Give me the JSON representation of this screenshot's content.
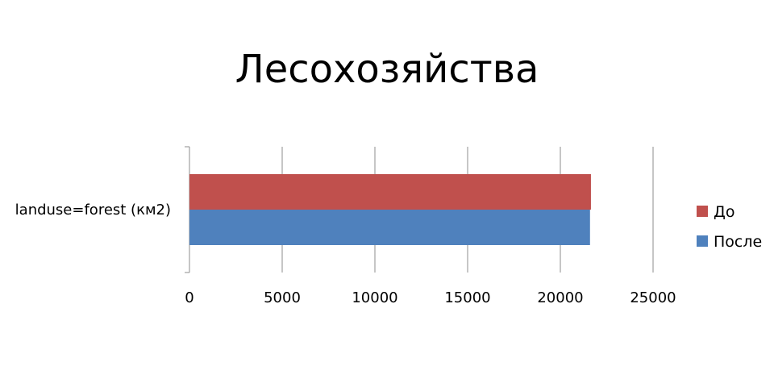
{
  "chart_data": {
    "type": "bar",
    "orientation": "horizontal",
    "title": "Лесохозяйства",
    "categories": [
      "landuse=forest (км2)"
    ],
    "series": [
      {
        "name": "До",
        "values": [
          21650
        ],
        "color": "#C0504D"
      },
      {
        "name": "После",
        "values": [
          21600
        ],
        "color": "#4F81BD"
      }
    ],
    "xlim": [
      0,
      25000
    ],
    "xticks": [
      0,
      5000,
      10000,
      15000,
      20000,
      25000
    ],
    "grid": true,
    "legend": "right"
  }
}
